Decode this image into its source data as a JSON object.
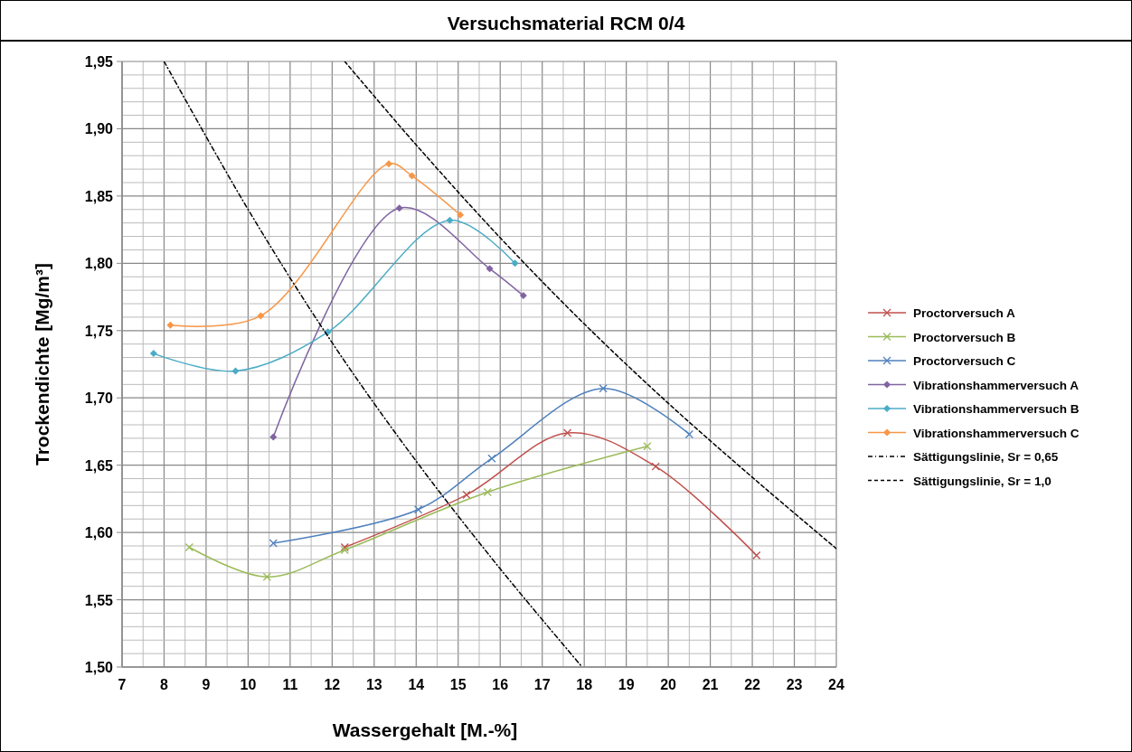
{
  "chart_data": {
    "type": "line",
    "title": "Versuchsmaterial RCM 0/4",
    "xlabel": "Wassergehalt [M.-%]",
    "ylabel": "Trockendichte [Mg/m³]",
    "xlim": [
      7,
      24
    ],
    "xticks": [
      7,
      8,
      9,
      10,
      11,
      12,
      13,
      14,
      15,
      16,
      17,
      18,
      19,
      20,
      21,
      22,
      23,
      24
    ],
    "ylim": [
      1.5,
      1.95
    ],
    "yticks": [
      {
        "value": 1.5,
        "label": "1,50"
      },
      {
        "value": 1.55,
        "label": "1,55"
      },
      {
        "value": 1.6,
        "label": "1,60"
      },
      {
        "value": 1.65,
        "label": "1,65"
      },
      {
        "value": 1.7,
        "label": "1,70"
      },
      {
        "value": 1.75,
        "label": "1,75"
      },
      {
        "value": 1.8,
        "label": "1,80"
      },
      {
        "value": 1.85,
        "label": "1,85"
      },
      {
        "value": 1.9,
        "label": "1,90"
      },
      {
        "value": 1.95,
        "label": "1,95"
      }
    ],
    "grid": true,
    "legend": "right",
    "series": [
      {
        "name": "Proctorversuch A",
        "color": "#c0504d",
        "marker": "cross",
        "x": [
          12.3,
          15.2,
          17.6,
          19.7,
          22.1
        ],
        "values": [
          1.589,
          1.628,
          1.674,
          1.649,
          1.583
        ]
      },
      {
        "name": "Proctorversuch B",
        "color": "#9bbb59",
        "marker": "cross",
        "x": [
          8.6,
          10.45,
          12.3,
          15.7,
          19.5
        ],
        "values": [
          1.589,
          1.567,
          1.587,
          1.63,
          1.664
        ]
      },
      {
        "name": "Proctorversuch C",
        "color": "#4f81bd",
        "marker": "cross",
        "x": [
          10.6,
          14.05,
          15.8,
          18.45,
          20.5
        ],
        "values": [
          1.592,
          1.617,
          1.655,
          1.707,
          1.673
        ]
      },
      {
        "name": "Vibrationshammerversuch A",
        "color": "#8064a2",
        "marker": "diamond",
        "x": [
          10.6,
          13.6,
          15.75,
          16.55
        ],
        "values": [
          1.671,
          1.841,
          1.796,
          1.776
        ]
      },
      {
        "name": "Vibrationshammerversuch B",
        "color": "#4bacc6",
        "marker": "diamond",
        "x": [
          7.75,
          9.7,
          11.9,
          14.8,
          16.35
        ],
        "values": [
          1.733,
          1.72,
          1.749,
          1.832,
          1.8
        ]
      },
      {
        "name": "Vibrationshammerversuch C",
        "color": "#f79646",
        "marker": "diamond",
        "x": [
          8.15,
          10.3,
          13.35,
          13.9,
          15.05
        ],
        "values": [
          1.754,
          1.761,
          1.874,
          1.865,
          1.836
        ]
      },
      {
        "name": "Sättigungslinie,  Sr = 0,65",
        "color": "#000000",
        "marker": "none",
        "line_style": "dotted",
        "x": [
          8,
          10,
          12,
          14,
          16,
          17.95
        ],
        "values": [
          1.95,
          1.84,
          1.741,
          1.653,
          1.573,
          1.5
        ]
      },
      {
        "name": "Sättigungslinie,  Sr = 1,0",
        "color": "#000000",
        "marker": "none",
        "line_style": "dashed",
        "x": [
          12.3,
          14,
          16,
          18,
          20,
          22,
          24
        ],
        "values": [
          1.95,
          1.888,
          1.819,
          1.755,
          1.696,
          1.641,
          1.588
        ]
      }
    ]
  }
}
